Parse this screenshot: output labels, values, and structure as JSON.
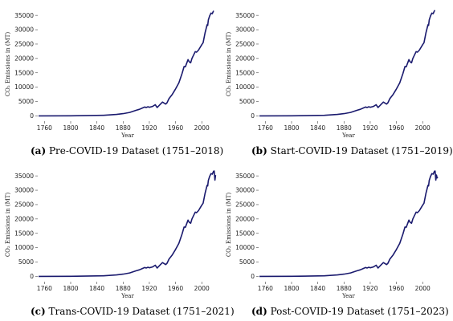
{
  "chart_data": [
    {
      "panel_letter": "(a)",
      "caption": "Pre-COVID-19 Dataset (1751–2018)",
      "type": "line",
      "xlabel": "Year",
      "ylabel": "CO₂ Emissions in (MT)",
      "xlim": [
        1751,
        2023
      ],
      "ylim": [
        -1000,
        37000
      ],
      "xticks": [
        1760,
        1800,
        1840,
        1880,
        1920,
        1960,
        2000
      ],
      "yticks": [
        0,
        5000,
        10000,
        15000,
        20000,
        25000,
        30000,
        35000
      ],
      "color": "#1a1a6e",
      "x": [
        1751,
        1800,
        1850,
        1870,
        1880,
        1890,
        1900,
        1905,
        1910,
        1913,
        1915,
        1918,
        1920,
        1925,
        1929,
        1932,
        1937,
        1940,
        1945,
        1947,
        1950,
        1955,
        1960,
        1965,
        1970,
        1973,
        1975,
        1979,
        1981,
        1983,
        1985,
        1990,
        1992,
        1995,
        2000,
        2002,
        2005,
        2008,
        2009,
        2010,
        2012,
        2014,
        2016,
        2018
      ],
      "values": [
        10,
        30,
        200,
        500,
        800,
        1200,
        1950,
        2300,
        2800,
        3100,
        2900,
        3200,
        3000,
        3300,
        3900,
        2900,
        4100,
        4800,
        4100,
        4600,
        6000,
        7500,
        9400,
        11500,
        14800,
        17200,
        17100,
        19600,
        18800,
        18500,
        20000,
        22400,
        22200,
        22900,
        24800,
        25500,
        28900,
        31700,
        31500,
        33400,
        34800,
        35800,
        35600,
        36600
      ]
    },
    {
      "panel_letter": "(b)",
      "caption": "Start-COVID-19 Dataset (1751–2019)",
      "type": "line",
      "xlabel": "Year",
      "ylabel": "CO₂ Emissions in (MT)",
      "xlim": [
        1751,
        2023
      ],
      "ylim": [
        -1000,
        37000
      ],
      "xticks": [
        1760,
        1800,
        1840,
        1880,
        1920,
        1960,
        2000
      ],
      "yticks": [
        0,
        5000,
        10000,
        15000,
        20000,
        25000,
        30000,
        35000
      ],
      "color": "#1a1a6e",
      "x": [
        1751,
        1800,
        1850,
        1870,
        1880,
        1890,
        1900,
        1905,
        1910,
        1913,
        1915,
        1918,
        1920,
        1925,
        1929,
        1932,
        1937,
        1940,
        1945,
        1947,
        1950,
        1955,
        1960,
        1965,
        1970,
        1973,
        1975,
        1979,
        1981,
        1983,
        1985,
        1990,
        1992,
        1995,
        2000,
        2002,
        2005,
        2008,
        2009,
        2010,
        2012,
        2014,
        2016,
        2018,
        2019
      ],
      "values": [
        10,
        30,
        200,
        500,
        800,
        1200,
        1950,
        2300,
        2800,
        3100,
        2900,
        3200,
        3000,
        3300,
        3900,
        2900,
        4100,
        4800,
        4100,
        4600,
        6000,
        7500,
        9400,
        11500,
        14800,
        17200,
        17100,
        19600,
        18800,
        18500,
        20000,
        22400,
        22200,
        22900,
        24800,
        25500,
        28900,
        31700,
        31500,
        33400,
        34800,
        35800,
        35600,
        36600,
        36700
      ]
    },
    {
      "panel_letter": "(c)",
      "caption": "Trans-COVID-19 Dataset (1751–2021)",
      "type": "line",
      "xlabel": "Year",
      "ylabel": "CO₂ Emissions in (MT)",
      "xlim": [
        1751,
        2023
      ],
      "ylim": [
        -1000,
        37000
      ],
      "xticks": [
        1760,
        1800,
        1840,
        1880,
        1920,
        1960,
        2000
      ],
      "yticks": [
        0,
        5000,
        10000,
        15000,
        20000,
        25000,
        30000,
        35000
      ],
      "color": "#1a1a6e",
      "x": [
        1751,
        1800,
        1850,
        1870,
        1880,
        1890,
        1900,
        1905,
        1910,
        1913,
        1915,
        1918,
        1920,
        1925,
        1929,
        1932,
        1937,
        1940,
        1945,
        1947,
        1950,
        1955,
        1960,
        1965,
        1970,
        1973,
        1975,
        1979,
        1981,
        1983,
        1985,
        1990,
        1992,
        1995,
        2000,
        2002,
        2005,
        2008,
        2009,
        2010,
        2012,
        2014,
        2016,
        2018,
        2019,
        2020,
        2021
      ],
      "values": [
        10,
        30,
        200,
        500,
        800,
        1200,
        1950,
        2300,
        2800,
        3100,
        2900,
        3200,
        3000,
        3300,
        3900,
        2900,
        4100,
        4800,
        4100,
        4600,
        6000,
        7500,
        9400,
        11500,
        14800,
        17200,
        17100,
        19600,
        18800,
        18500,
        20000,
        22400,
        22200,
        22900,
        24800,
        25500,
        28900,
        31700,
        31500,
        33400,
        34800,
        35800,
        35600,
        36600,
        36700,
        33500,
        35300
      ]
    },
    {
      "panel_letter": "(d)",
      "caption": "Post-COVID-19 Dataset (1751–2023)",
      "type": "line",
      "xlabel": "Year",
      "ylabel": "CO₂ Emissions in (MT)",
      "xlim": [
        1751,
        2023
      ],
      "ylim": [
        -1000,
        37000
      ],
      "xticks": [
        1760,
        1800,
        1840,
        1880,
        1920,
        1960,
        2000
      ],
      "yticks": [
        0,
        5000,
        10000,
        15000,
        20000,
        25000,
        30000,
        35000
      ],
      "color": "#1a1a6e",
      "x": [
        1751,
        1800,
        1850,
        1870,
        1880,
        1890,
        1900,
        1905,
        1910,
        1913,
        1915,
        1918,
        1920,
        1925,
        1929,
        1932,
        1937,
        1940,
        1945,
        1947,
        1950,
        1955,
        1960,
        1965,
        1970,
        1973,
        1975,
        1979,
        1981,
        1983,
        1985,
        1990,
        1992,
        1995,
        2000,
        2002,
        2005,
        2008,
        2009,
        2010,
        2012,
        2014,
        2016,
        2018,
        2019,
        2020,
        2021,
        2022,
        2023
      ],
      "values": [
        10,
        30,
        200,
        500,
        800,
        1200,
        1950,
        2300,
        2800,
        3100,
        2900,
        3200,
        3000,
        3300,
        3900,
        2900,
        4100,
        4800,
        4100,
        4600,
        6000,
        7500,
        9400,
        11500,
        14800,
        17200,
        17100,
        19600,
        18800,
        18500,
        20000,
        22400,
        22200,
        22900,
        24800,
        25500,
        28900,
        31700,
        31500,
        33400,
        34800,
        35800,
        35600,
        36600,
        36700,
        33500,
        35300,
        34300,
        34600
      ]
    }
  ]
}
